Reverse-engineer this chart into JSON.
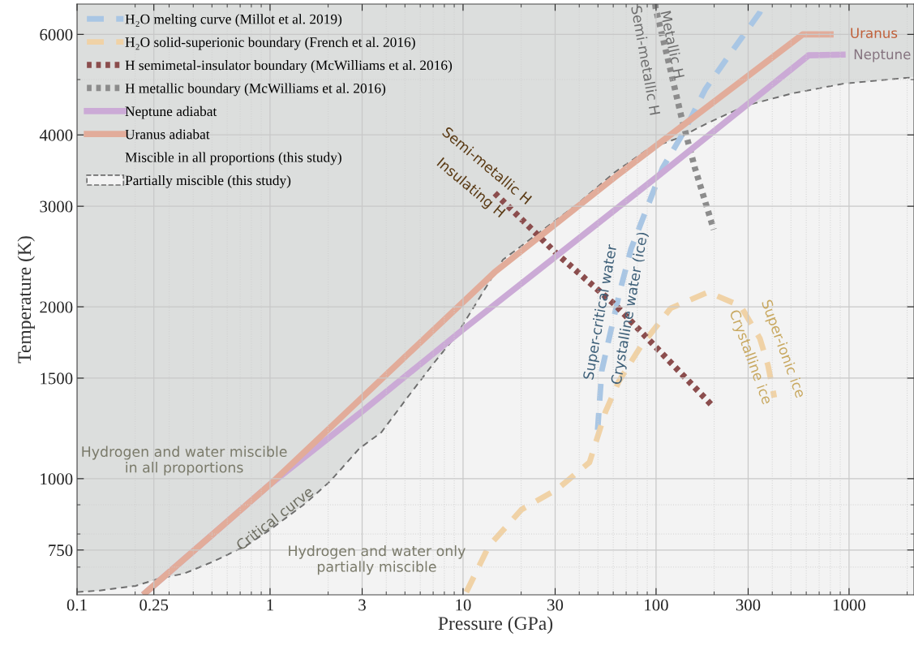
{
  "chart_data": {
    "type": "line",
    "xlabel": "Pressure (GPa)",
    "ylabel": "Temperature (K)",
    "log": "xy",
    "grid": true,
    "legend": "top left",
    "xlim": [
      0.1,
      2170
    ],
    "ylim": [
      626,
      6780
    ],
    "xticks": [
      0.1,
      0.25,
      1,
      3,
      10,
      30,
      100,
      300,
      1000
    ],
    "yticks": [
      750,
      1000,
      1500,
      2000,
      3000,
      4000,
      6000
    ],
    "series": [
      {
        "name": "H₂O melting curve (Millot et al. 2019)",
        "line_style": "dashed",
        "color": "#a9c6e4",
        "x": [
          49.8,
          52.3,
          57.6,
          65.3,
          74.1,
          108,
          139,
          180,
          241,
          345,
          355
        ],
        "values": [
          1217,
          1545,
          1784,
          2143,
          2523,
          3500,
          4043,
          4808,
          5534,
          6558,
          6780
        ]
      },
      {
        "name": "H₂O solid-superionic boundary (French et al. 2016)",
        "line_style": "dashed",
        "color": "#f0d2a6",
        "x": [
          10.4,
          13.6,
          20.1,
          30.7,
          45.2,
          54.8,
          64.1,
          83.2,
          119,
          186,
          274,
          345,
          380,
          410
        ],
        "values": [
          633,
          762,
          883,
          958,
          1068,
          1312,
          1480,
          1704,
          1988,
          2122,
          2007,
          1761,
          1581,
          1387
        ]
      },
      {
        "name": "H semimetal-insulator boundary (McWilliams et al. 2016)",
        "line_style": "dotted",
        "color": "#8b4d4d",
        "x": [
          14.6,
          30.7,
          62.2,
          199
        ],
        "values": [
          3162,
          2474,
          2007,
          1334
        ]
      },
      {
        "name": "H metallic boundary (McWilliams et al. 2016)",
        "line_style": "dotted",
        "color": "#8c8c8c",
        "x": [
          99,
          99.5,
          119,
          135,
          159,
          199
        ],
        "values": [
          6780,
          6668,
          5183,
          4315,
          3500,
          2730
        ]
      },
      {
        "name": "Neptune adiabat",
        "line_style": "solid",
        "color": "#cbaad6",
        "x": [
          0.22,
          1,
          3.0,
          9.9,
          101,
          617,
          960
        ],
        "values": [
          626,
          977,
          1312,
          1820,
          3377,
          5514,
          5530
        ]
      },
      {
        "name": "Uranus adiabat",
        "line_style": "solid",
        "color": "#e2ac9a",
        "x": [
          0.22,
          1,
          14.6,
          62.2,
          575,
          832
        ],
        "values": [
          626,
          977,
          2300,
          3388,
          6000,
          6000
        ]
      },
      {
        "name": "Partially miscible (this study)",
        "type": "area",
        "line_style": "dashed",
        "color": "#f3f3f3",
        "x": [
          0.1,
          0.131,
          0.201,
          0.268,
          0.359,
          0.508,
          0.748,
          1.0,
          1.53,
          2.05,
          2.9,
          3.77,
          5.03,
          6.92,
          9.25,
          16.1,
          23.7,
          38.4,
          60.5,
          91.6,
          131,
          180,
          292,
          508,
          935,
          2168
        ],
        "values": [
          633,
          637,
          649,
          669,
          682,
          716,
          762,
          814,
          906,
          990,
          1129,
          1205,
          1373,
          1581,
          1784,
          2418,
          2667,
          3011,
          3432,
          3785,
          3952,
          4177,
          4502,
          4729,
          4918,
          5048
        ]
      }
    ],
    "bands": [
      {
        "axis": "x",
        "from": 0.1,
        "to": 2170,
        "label": "Miscible in all proportions (this study)",
        "color": "#dcdedd"
      }
    ],
    "annotations": [
      "Uranus",
      "Neptune",
      "Hydrogen and water miscible\nin all proportions",
      "Critical curve",
      "Hydrogen and water only\npartially miscible",
      "Semi-metallic H",
      "Insulating H",
      "Metallic H",
      "Semi-metallic H",
      "Super-critical water",
      "Crystalline water (ice)",
      "Crystalline ice",
      "Super-ionic ice"
    ]
  }
}
